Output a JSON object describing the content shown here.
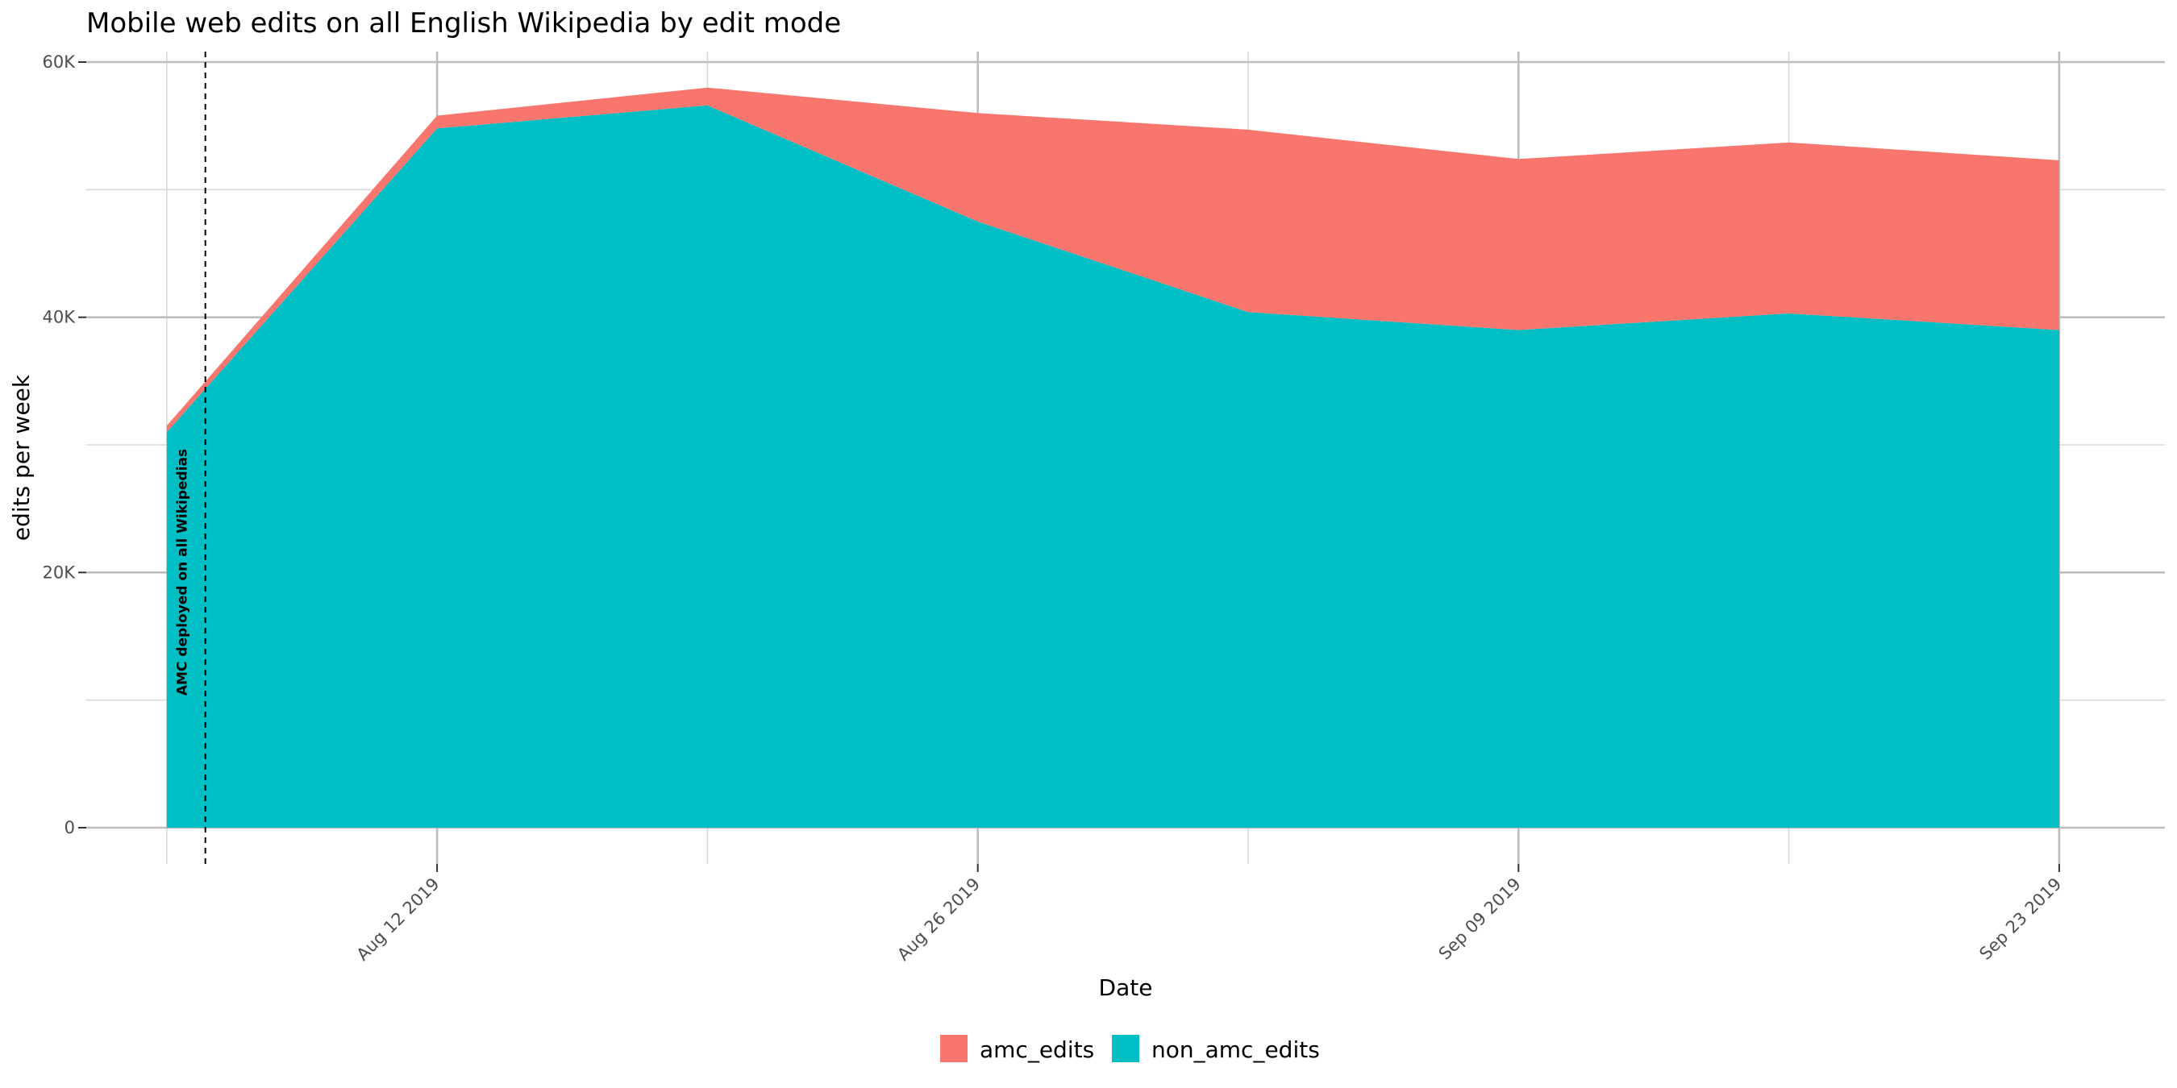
{
  "chart_data": {
    "type": "area",
    "stacked": true,
    "title": "Mobile web edits on all English Wikipedia by edit mode",
    "xlabel": "Date",
    "ylabel": "edits per week",
    "x": [
      "2019-08-05",
      "2019-08-12",
      "2019-08-19",
      "2019-08-26",
      "2019-09-02",
      "2019-09-09",
      "2019-09-16",
      "2019-09-23"
    ],
    "x_tick_values": [
      "2019-08-12",
      "2019-08-26",
      "2019-09-09",
      "2019-09-23"
    ],
    "x_tick_labels": [
      "Aug 12 2019",
      "Aug 26 2019",
      "Sep 09 2019",
      "Sep 23 2019"
    ],
    "xlim": [
      "2019-08-03",
      "2019-09-23"
    ],
    "y_ticks": [
      0,
      20000,
      40000,
      60000
    ],
    "y_tick_labels": [
      "0",
      "20K",
      "40K",
      "60K"
    ],
    "ylim": [
      0,
      60000
    ],
    "series": [
      {
        "name": "non_amc_edits",
        "color": "#00BFC4",
        "values": [
          31000,
          54800,
          56600,
          47500,
          40400,
          39000,
          40300,
          39000
        ]
      },
      {
        "name": "amc_edits",
        "color": "#F8766D",
        "values": [
          500,
          1000,
          1400,
          8500,
          14300,
          13400,
          13400,
          13300
        ]
      }
    ],
    "stack_order": [
      "non_amc_edits",
      "amc_edits"
    ],
    "legend": {
      "position": "bottom",
      "entries": [
        "amc_edits",
        "non_amc_edits"
      ]
    },
    "grid": true,
    "annotations": [
      {
        "x": "2019-08-06",
        "text": "AMC deployed on all Wikipedias",
        "line_style": "dashed"
      }
    ]
  }
}
